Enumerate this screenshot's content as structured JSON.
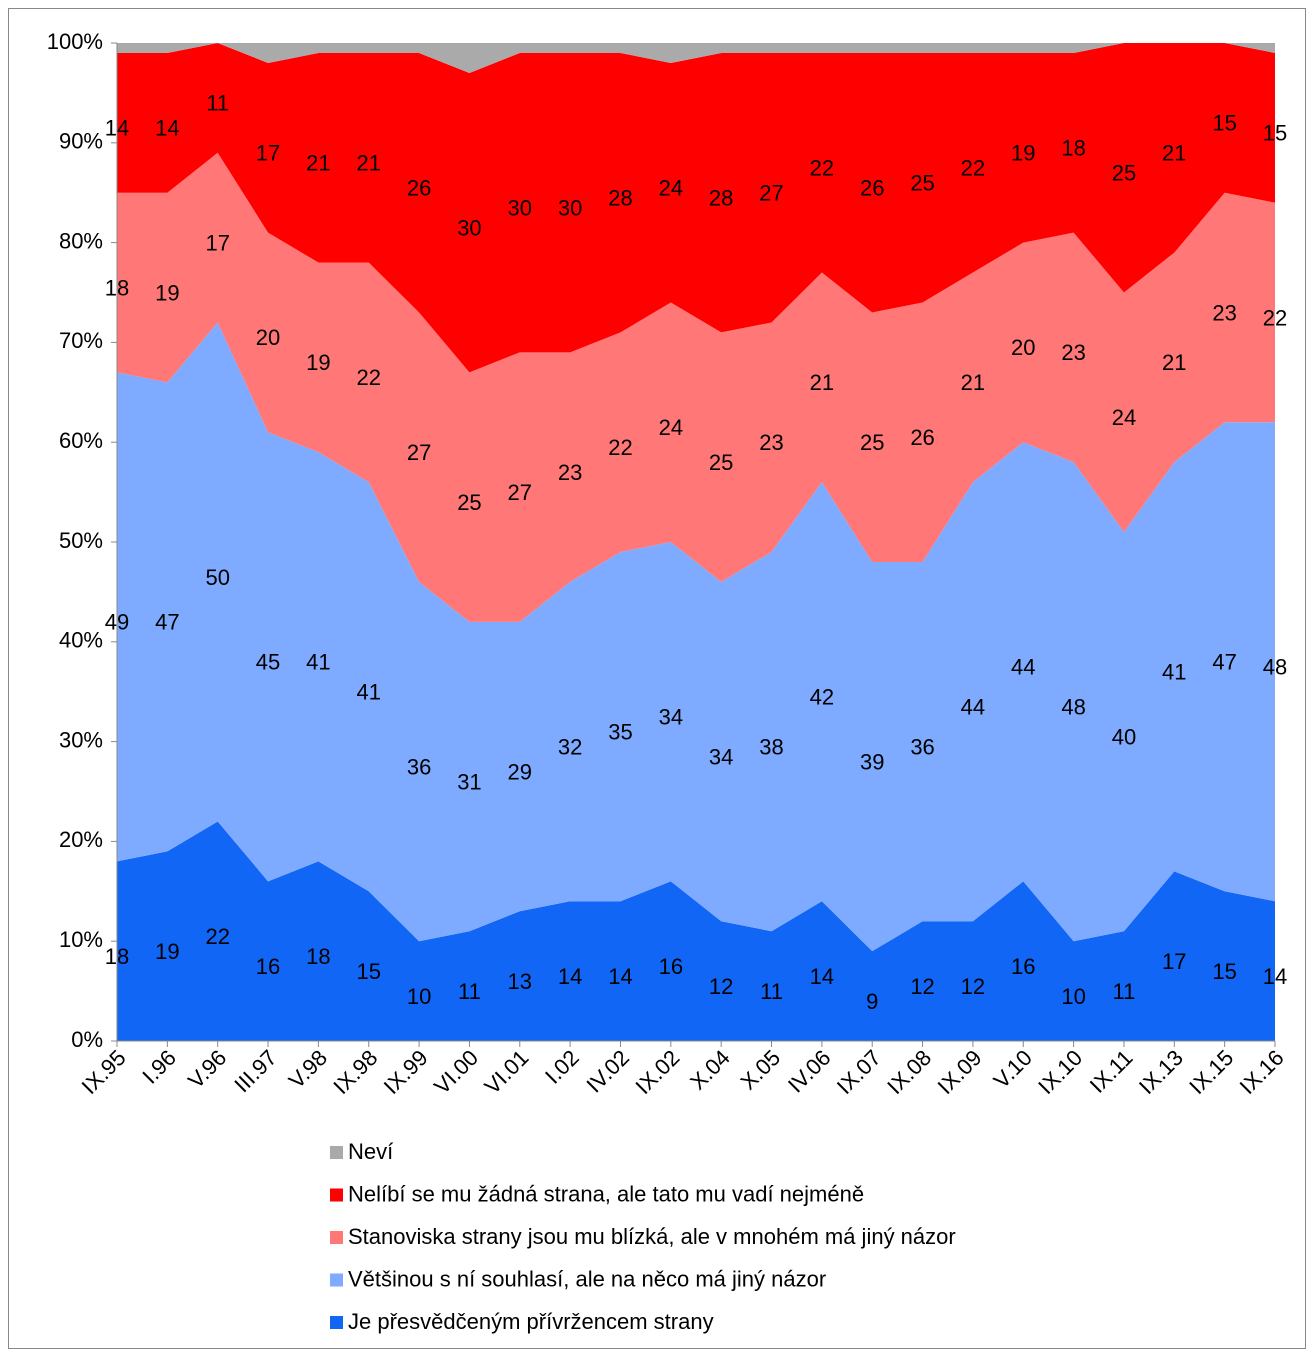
{
  "chart_data": {
    "type": "stacked-area",
    "categories": [
      "IX.95",
      "I.96",
      "V.96",
      "III.97",
      "V.98",
      "IX.98",
      "IX.99",
      "VI.00",
      "VI.01",
      "I.02",
      "IV.02",
      "IX.02",
      "X.04",
      "X.05",
      "IV.06",
      "IX.07",
      "IX.08",
      "IX.09",
      "V.10",
      "IX.10",
      "IX.11",
      "IX.13",
      "IX.15",
      "IX.16"
    ],
    "series": [
      {
        "name": "Je přesvědčeným přívržencem strany",
        "color": "#1166f5",
        "values": [
          18,
          19,
          22,
          16,
          18,
          15,
          10,
          11,
          13,
          14,
          14,
          16,
          12,
          11,
          14,
          9,
          12,
          12,
          16,
          10,
          11,
          17,
          15,
          14
        ]
      },
      {
        "name": "Většinou s ní souhlasí, ale na něco má jiný názor",
        "color": "#7eabff",
        "values": [
          49,
          47,
          50,
          45,
          41,
          41,
          36,
          31,
          29,
          32,
          35,
          34,
          34,
          38,
          42,
          39,
          36,
          44,
          44,
          48,
          40,
          41,
          47,
          48
        ]
      },
      {
        "name": "Stanoviska strany jsou mu blízká, ale v mnohém má jiný názor",
        "color": "#ff7777",
        "values": [
          18,
          19,
          17,
          20,
          19,
          22,
          27,
          25,
          27,
          23,
          22,
          24,
          25,
          23,
          21,
          25,
          26,
          21,
          20,
          23,
          24,
          21,
          23,
          22
        ]
      },
      {
        "name": "Nelíbí se mu žádná strana, ale tato mu vadí nejméně",
        "color": "#ff0000",
        "values": [
          14,
          14,
          11,
          17,
          21,
          21,
          26,
          30,
          30,
          30,
          28,
          24,
          28,
          27,
          22,
          26,
          25,
          22,
          19,
          18,
          25,
          21,
          15,
          15
        ]
      },
      {
        "name": "Neví",
        "color": "#aaaaaa",
        "values": [
          1,
          1,
          0,
          2,
          1,
          1,
          1,
          3,
          1,
          1,
          1,
          2,
          1,
          1,
          1,
          1,
          1,
          1,
          1,
          1,
          0,
          0,
          0,
          1
        ]
      }
    ],
    "labeled_series": [
      0,
      1,
      2,
      3
    ],
    "ylim": [
      0,
      100
    ],
    "yticks": [
      {
        "value": 0,
        "label": "0%"
      },
      {
        "value": 10,
        "label": "10%"
      },
      {
        "value": 20,
        "label": "20%"
      },
      {
        "value": 30,
        "label": "30%"
      },
      {
        "value": 40,
        "label": "40%"
      },
      {
        "value": 50,
        "label": "50%"
      },
      {
        "value": 60,
        "label": "60%"
      },
      {
        "value": 70,
        "label": "70%"
      },
      {
        "value": 80,
        "label": "80%"
      },
      {
        "value": 90,
        "label": "90%"
      },
      {
        "value": 100,
        "label": "100%"
      }
    ],
    "legend": "bottom"
  }
}
